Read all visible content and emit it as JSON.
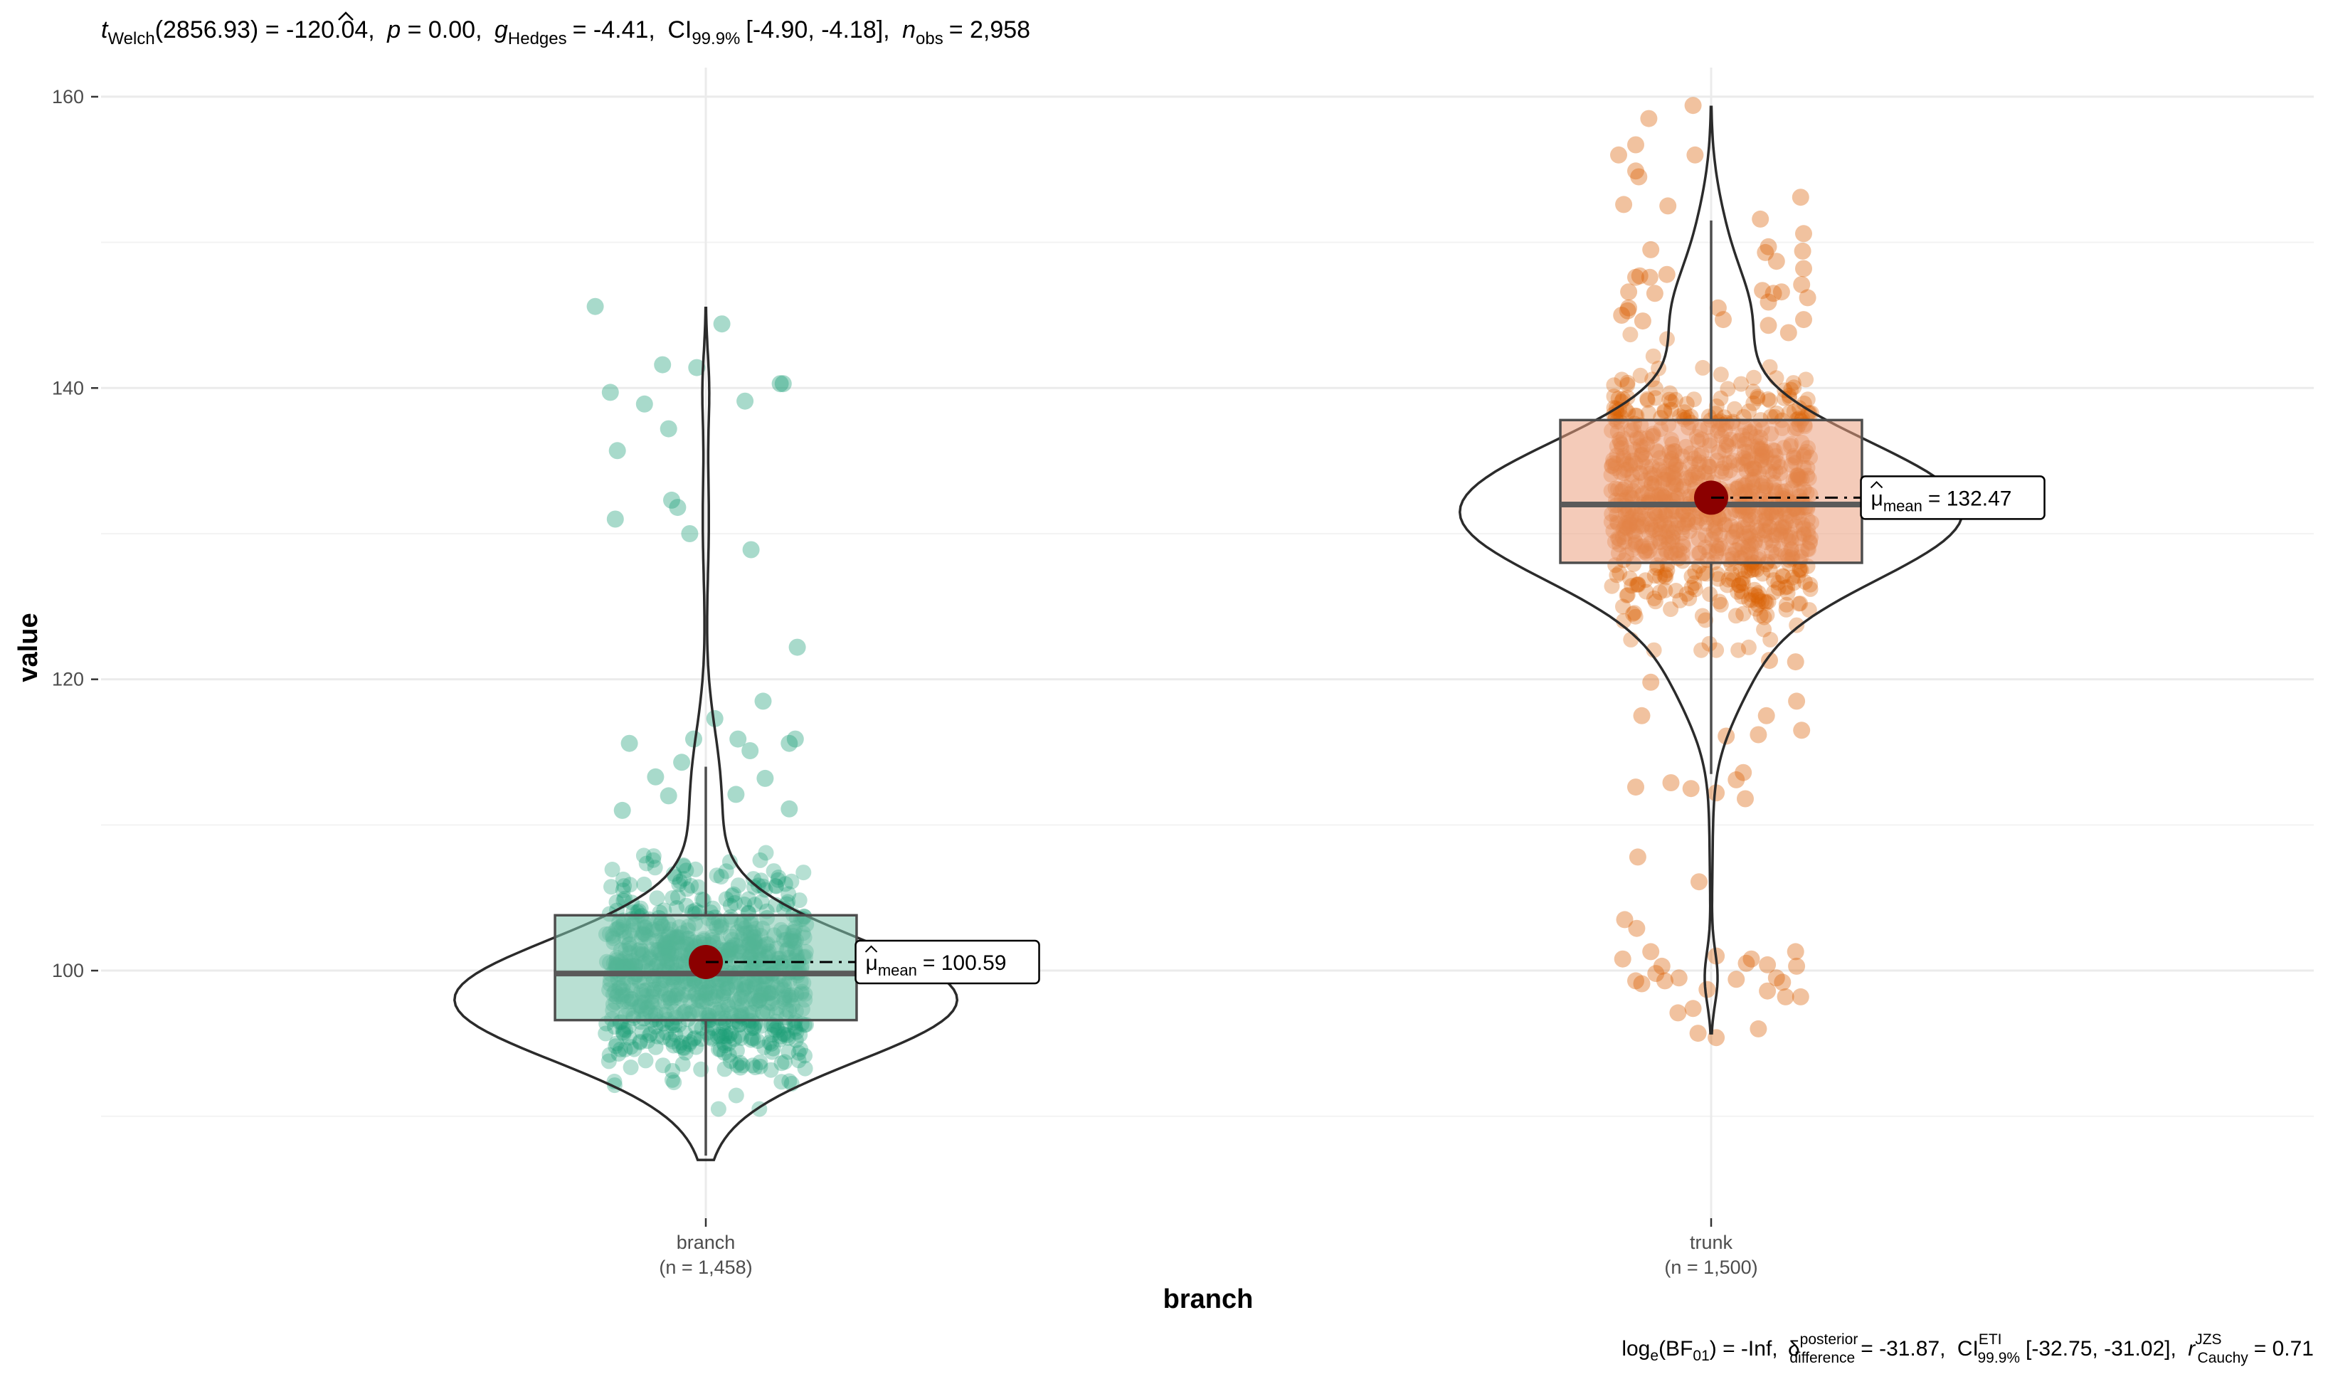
{
  "chart_data": {
    "type": "violin-box-scatter",
    "title": {
      "stat_symbol": "t",
      "stat_sub": "Welch",
      "stat_df": "(2856.93) = -120.04,",
      "p_symbol": "p",
      "p_value": "= 0.00,",
      "effect_symbol": "g",
      "effect_sub": "Hedges",
      "effect_value": "= -4.41,",
      "ci_label": "CI",
      "ci_sub": "99.9%",
      "ci_range": "[-4.90, -4.18],",
      "n_symbol": "n",
      "n_sub": "obs",
      "n_value": "= 2,958"
    },
    "caption": {
      "bf_label": "log",
      "bf_sub": "e",
      "bf_rest": "(BF",
      "bf_sub2": "01",
      "bf_value": ") = -Inf,",
      "delta_symbol": "δ",
      "delta_sup": "posterior",
      "delta_sub": "difference",
      "delta_value": "= -31.87,",
      "ci_label": "CI",
      "ci_sup": "ETI",
      "ci_sub": "99.9%",
      "ci_range": "[-32.75, -31.02],",
      "r_symbol": "r",
      "r_sup": "JZS",
      "r_sub": "Cauchy",
      "r_value": "= 0.71"
    },
    "xlabel": "branch",
    "ylabel": "value",
    "ylim": [
      83,
      162
    ],
    "yticks": [
      100,
      120,
      140,
      160
    ],
    "ytick_labels": [
      "100",
      "120",
      "140",
      "160"
    ],
    "grid": true,
    "groups": [
      {
        "name": "branch",
        "n_label": "(n = 1,458)",
        "color": "#1b9e77",
        "box_fill": "#7fc6ae",
        "q1": 96.6,
        "median": 99.8,
        "q3": 103.8,
        "whisker_low": 87.3,
        "whisker_high": 114,
        "mean": 100.59,
        "mean_label_symbol": "μ",
        "mean_label_sub": "mean",
        "mean_label_value": "= 100.59",
        "violin_min": 87,
        "violin_max": 145.5,
        "dense_low": 90.5,
        "dense_high": 111,
        "outliers": [
          [
            -0.11,
            145.6
          ],
          [
            0.016,
            144.4
          ],
          [
            -0.043,
            141.6
          ],
          [
            -0.009,
            141.4
          ],
          [
            -0.095,
            139.7
          ],
          [
            -0.061,
            138.9
          ],
          [
            -0.037,
            137.2
          ],
          [
            0.074,
            140.3
          ],
          [
            0.077,
            140.3
          ],
          [
            0.039,
            139.1
          ],
          [
            -0.088,
            135.7
          ],
          [
            -0.034,
            132.3
          ],
          [
            -0.028,
            131.8
          ],
          [
            -0.09,
            131.0
          ],
          [
            -0.016,
            130.0
          ],
          [
            0.045,
            128.9
          ],
          [
            0.091,
            122.2
          ],
          [
            0.057,
            118.5
          ],
          [
            0.009,
            117.3
          ],
          [
            0.032,
            115.9
          ],
          [
            -0.012,
            115.9
          ],
          [
            0.044,
            115.1
          ],
          [
            -0.076,
            115.6
          ],
          [
            0.083,
            115.6
          ],
          [
            0.089,
            115.9
          ],
          [
            -0.024,
            114.3
          ],
          [
            0.059,
            113.2
          ],
          [
            -0.05,
            113.3
          ],
          [
            -0.037,
            112.0
          ],
          [
            0.03,
            112.1
          ],
          [
            -0.083,
            111.0
          ],
          [
            0.083,
            111.1
          ]
        ]
      },
      {
        "name": "trunk",
        "n_label": "(n = 1,500)",
        "color": "#d95f02",
        "box_fill": "#eba17f",
        "q1": 128.0,
        "median": 132.0,
        "q3": 137.8,
        "whisker_low": 113.5,
        "whisker_high": 151.5,
        "mean": 132.47,
        "mean_label_symbol": "μ",
        "mean_label_sub": "mean",
        "mean_label_value": "= 132.47",
        "violin_min": 95.7,
        "violin_max": 159.3,
        "dense_low": 122,
        "dense_high": 146,
        "outliers": [
          [
            -0.018,
            159.4
          ],
          [
            -0.062,
            158.5
          ],
          [
            -0.092,
            156.0
          ],
          [
            -0.075,
            156.7
          ],
          [
            -0.016,
            156.0
          ],
          [
            -0.075,
            154.9
          ],
          [
            -0.072,
            154.5
          ],
          [
            0.089,
            153.1
          ],
          [
            -0.087,
            152.6
          ],
          [
            -0.043,
            152.5
          ],
          [
            0.049,
            151.6
          ],
          [
            0.092,
            150.6
          ],
          [
            0.057,
            149.7
          ],
          [
            0.054,
            149.3
          ],
          [
            0.091,
            149.4
          ],
          [
            -0.06,
            149.5
          ],
          [
            -0.071,
            147.7
          ],
          [
            0.096,
            146.2
          ],
          [
            -0.082,
            146.6
          ],
          [
            0.051,
            146.7
          ],
          [
            0.062,
            146.5
          ],
          [
            -0.075,
            147.6
          ],
          [
            0.065,
            148.7
          ],
          [
            0.092,
            148.2
          ],
          [
            -0.061,
            147.6
          ],
          [
            0.07,
            146.6
          ],
          [
            -0.044,
            147.8
          ],
          [
            0.09,
            147.1
          ],
          [
            0.012,
            144.7
          ],
          [
            0.092,
            144.7
          ],
          [
            -0.082,
            145.5
          ],
          [
            0.077,
            143.8
          ],
          [
            -0.068,
            144.6
          ],
          [
            0.007,
            145.5
          ],
          [
            -0.083,
            145.3
          ],
          [
            0.057,
            145.9
          ],
          [
            0.057,
            144.3
          ],
          [
            -0.089,
            145.0
          ],
          [
            -0.056,
            146.5
          ],
          [
            0.058,
            121.3
          ],
          [
            0.085,
            118.5
          ],
          [
            -0.069,
            117.5
          ],
          [
            -0.06,
            119.8
          ],
          [
            0.084,
            121.2
          ],
          [
            0.055,
            117.5
          ],
          [
            0.047,
            116.2
          ],
          [
            0.09,
            116.5
          ],
          [
            0.015,
            116.1
          ],
          [
            0.032,
            113.6
          ],
          [
            0.025,
            113.1
          ],
          [
            -0.04,
            112.9
          ],
          [
            -0.02,
            112.5
          ],
          [
            0.005,
            112.2
          ],
          [
            -0.075,
            112.6
          ],
          [
            0.034,
            111.8
          ],
          [
            -0.086,
            103.5
          ],
          [
            -0.012,
            106.1
          ],
          [
            -0.073,
            107.8
          ],
          [
            -0.074,
            102.9
          ],
          [
            -0.06,
            101.3
          ],
          [
            0.084,
            101.3
          ],
          [
            -0.088,
            100.8
          ],
          [
            -0.049,
            100.3
          ],
          [
            0.056,
            100.4
          ],
          [
            0.085,
            100.3
          ],
          [
            -0.046,
            99.3
          ],
          [
            -0.032,
            99.5
          ],
          [
            0.025,
            99.4
          ],
          [
            0.071,
            99.2
          ],
          [
            -0.055,
            99.8
          ],
          [
            0.04,
            100.8
          ],
          [
            0.005,
            101.0
          ],
          [
            -0.075,
            99.3
          ],
          [
            0.056,
            98.6
          ],
          [
            0.074,
            98.2
          ],
          [
            0.089,
            98.2
          ],
          [
            -0.018,
            97.4
          ],
          [
            -0.033,
            97.1
          ],
          [
            -0.013,
            95.7
          ],
          [
            0.047,
            96.0
          ],
          [
            -0.069,
            99.1
          ],
          [
            0.035,
            100.5
          ],
          [
            0.065,
            99.5
          ],
          [
            -0.004,
            98.7
          ],
          [
            0.005,
            95.4
          ]
        ]
      }
    ]
  }
}
